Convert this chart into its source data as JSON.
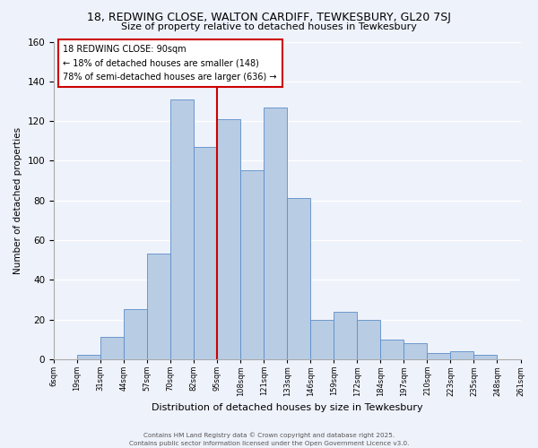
{
  "title": "18, REDWING CLOSE, WALTON CARDIFF, TEWKESBURY, GL20 7SJ",
  "subtitle": "Size of property relative to detached houses in Tewkesbury",
  "xlabel": "Distribution of detached houses by size in Tewkesbury",
  "ylabel": "Number of detached properties",
  "bar_labels": [
    "6sqm",
    "19sqm",
    "31sqm",
    "44sqm",
    "57sqm",
    "70sqm",
    "82sqm",
    "95sqm",
    "108sqm",
    "121sqm",
    "133sqm",
    "146sqm",
    "159sqm",
    "172sqm",
    "184sqm",
    "197sqm",
    "210sqm",
    "223sqm",
    "235sqm",
    "248sqm",
    "261sqm"
  ],
  "bar_values": [
    0,
    2,
    11,
    25,
    53,
    131,
    107,
    121,
    95,
    127,
    81,
    20,
    24,
    20,
    10,
    8,
    3,
    4,
    2,
    0
  ],
  "bar_color": "#b8cce4",
  "bar_edge_color": "#5b8dc8",
  "vline_color": "#cc0000",
  "annotation_line1": "18 REDWING CLOSE: 90sqm",
  "annotation_line2": "← 18% of detached houses are smaller (148)",
  "annotation_line3": "78% of semi-detached houses are larger (636) →",
  "annotation_box_color": "#ffffff",
  "annotation_box_edge": "#cc0000",
  "ylim": [
    0,
    160
  ],
  "yticks": [
    0,
    20,
    40,
    60,
    80,
    100,
    120,
    140,
    160
  ],
  "footer1": "Contains HM Land Registry data © Crown copyright and database right 2025.",
  "footer2": "Contains public sector information licensed under the Open Government Licence v3.0.",
  "bg_color": "#eef2fb",
  "grid_color": "#ffffff",
  "title_fontsize": 9,
  "subtitle_fontsize": 8
}
